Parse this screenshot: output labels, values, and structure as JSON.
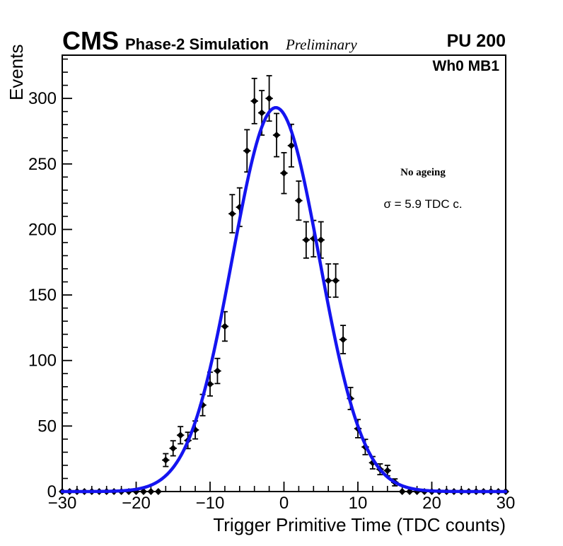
{
  "header": {
    "experiment": "CMS",
    "subtitle": "Phase-2 Simulation",
    "preliminary": "Preliminary",
    "pileup": "PU 200"
  },
  "plot": {
    "region_label": "Wh0 MB1",
    "annotation": {
      "line1": "No ageing",
      "line2": "σ = 5.9 TDC c."
    }
  },
  "chart_data": {
    "type": "scatter",
    "subtype": "histogram-points-with-gaussian-fit",
    "title": "",
    "xlabel": "Trigger Primitive Time (TDC counts)",
    "ylabel": "Events",
    "xlim": [
      -30,
      30
    ],
    "ylim": [
      0,
      333
    ],
    "x_major_ticks": [
      -30,
      -20,
      -10,
      0,
      10,
      20,
      30
    ],
    "x_tick_labels": [
      "−30",
      "−20",
      "−10",
      "0",
      "10",
      "20",
      "30"
    ],
    "x_minor_step": 2,
    "y_major_ticks": [
      0,
      50,
      100,
      150,
      200,
      250,
      300
    ],
    "y_tick_labels": [
      "0",
      "50",
      "100",
      "150",
      "200",
      "250",
      "300"
    ],
    "y_minor_step": 10,
    "grid": false,
    "legend": null,
    "x": [
      -30,
      -29,
      -28,
      -27,
      -26,
      -25,
      -24,
      -23,
      -22,
      -21,
      -20,
      -19,
      -18,
      -17,
      -16,
      -15,
      -14,
      -13,
      -12,
      -11,
      -10,
      -9,
      -8,
      -7,
      -6,
      -5,
      -4,
      -3,
      -2,
      -1,
      0,
      1,
      2,
      3,
      4,
      5,
      6,
      7,
      8,
      9,
      10,
      11,
      12,
      13,
      14,
      15,
      16,
      17,
      18,
      19,
      20,
      21,
      22,
      23,
      24,
      25,
      26,
      27,
      28,
      29,
      30
    ],
    "y": [
      0,
      0,
      0,
      0,
      0,
      0,
      0,
      0,
      0,
      0,
      0,
      0,
      0,
      0,
      24,
      33,
      43,
      39,
      47,
      66,
      82,
      92,
      126,
      212,
      217,
      260,
      298,
      289,
      300,
      272,
      243,
      264,
      222,
      192,
      193,
      192,
      161,
      161,
      116,
      71,
      48,
      34,
      22,
      17,
      16,
      7,
      0,
      0,
      0,
      0,
      0,
      0,
      0,
      0,
      0,
      0,
      0,
      0,
      0,
      0,
      0
    ],
    "error_bars": "poisson_sqrt_y",
    "marker": {
      "shape": "diamond",
      "color": "#000000"
    },
    "fit": {
      "type": "gaussian",
      "mean": -1.1,
      "sigma": 5.9,
      "amplitude": 293,
      "color": "#1414f0"
    }
  }
}
